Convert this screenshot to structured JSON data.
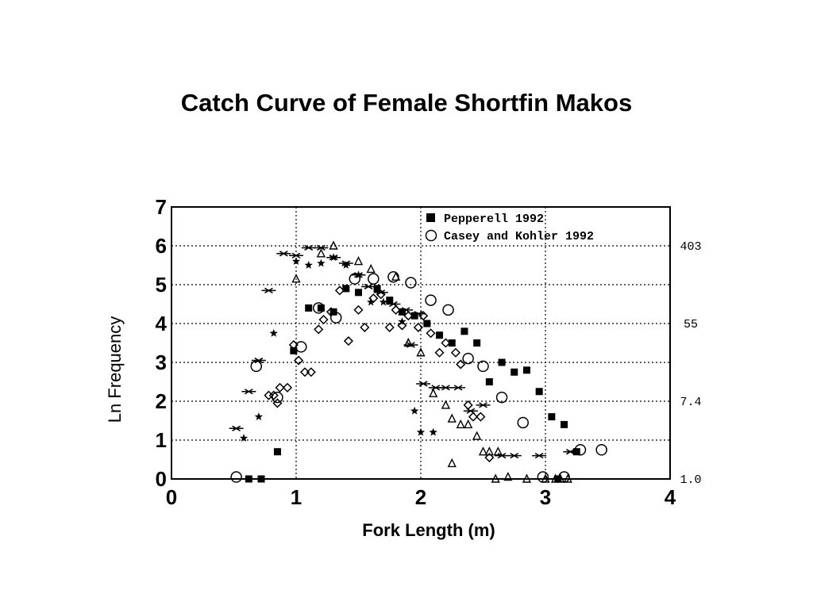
{
  "title": "Catch Curve of Female Shortfin Makos",
  "chart_data": {
    "type": "scatter",
    "xlabel": "Fork Length (m)",
    "ylabel": "Ln Frequency",
    "xlim": [
      0,
      4
    ],
    "ylim": [
      0,
      7
    ],
    "x_ticks": [
      "0",
      "1",
      "2",
      "3",
      "4"
    ],
    "y_ticks": [
      "0",
      "1",
      "2",
      "3",
      "4",
      "5",
      "6",
      "7"
    ],
    "grid": "dotted",
    "right_axis_labels": [
      {
        "y": 6.0,
        "text": "403"
      },
      {
        "y": 4.0,
        "text": "55"
      },
      {
        "y": 2.0,
        "text": "7.4"
      },
      {
        "y": 0.0,
        "text": "1.0"
      }
    ],
    "legend": {
      "placement": "top-right"
    },
    "series": [
      {
        "name": "Pepperell 1992",
        "marker": "filled-square",
        "points": [
          [
            0.62,
            0
          ],
          [
            0.72,
            0
          ],
          [
            0.85,
            0.7
          ],
          [
            0.98,
            3.3
          ],
          [
            1.1,
            4.4
          ],
          [
            1.2,
            4.4
          ],
          [
            1.3,
            4.3
          ],
          [
            1.4,
            4.9
          ],
          [
            1.5,
            4.8
          ],
          [
            1.65,
            4.9
          ],
          [
            1.75,
            4.6
          ],
          [
            1.85,
            4.3
          ],
          [
            1.95,
            4.2
          ],
          [
            2.05,
            4.0
          ],
          [
            2.15,
            3.7
          ],
          [
            2.25,
            3.5
          ],
          [
            2.35,
            3.8
          ],
          [
            2.45,
            3.5
          ],
          [
            2.55,
            2.5
          ],
          [
            2.65,
            3.0
          ],
          [
            2.75,
            2.75
          ],
          [
            2.85,
            2.8
          ],
          [
            2.95,
            2.25
          ],
          [
            3.05,
            1.6
          ],
          [
            3.15,
            1.4
          ],
          [
            3.25,
            0.7
          ],
          [
            3.1,
            0
          ]
        ]
      },
      {
        "name": "Casey and Kohler 1992",
        "marker": "open-circle",
        "points": [
          [
            0.52,
            0.05
          ],
          [
            0.68,
            2.9
          ],
          [
            0.85,
            2.1
          ],
          [
            1.04,
            3.4
          ],
          [
            1.18,
            4.4
          ],
          [
            1.32,
            4.15
          ],
          [
            1.47,
            5.15
          ],
          [
            1.62,
            5.15
          ],
          [
            1.78,
            5.2
          ],
          [
            1.92,
            5.05
          ],
          [
            2.08,
            4.6
          ],
          [
            2.22,
            4.35
          ],
          [
            2.38,
            3.1
          ],
          [
            2.5,
            2.9
          ],
          [
            2.65,
            2.1
          ],
          [
            2.82,
            1.45
          ],
          [
            2.98,
            0.05
          ],
          [
            3.15,
            0.05
          ],
          [
            3.28,
            0.75
          ],
          [
            3.45,
            0.75
          ]
        ]
      },
      {
        "name": "",
        "marker": "open-diamond",
        "points": [
          [
            0.78,
            2.15
          ],
          [
            0.82,
            2.15
          ],
          [
            0.85,
            1.95
          ],
          [
            0.87,
            2.35
          ],
          [
            0.93,
            2.35
          ],
          [
            0.98,
            3.45
          ],
          [
            1.02,
            3.05
          ],
          [
            1.07,
            2.75
          ],
          [
            1.12,
            2.75
          ],
          [
            1.18,
            3.85
          ],
          [
            1.22,
            4.1
          ],
          [
            1.28,
            4.3
          ],
          [
            1.35,
            4.85
          ],
          [
            1.42,
            3.55
          ],
          [
            1.5,
            4.35
          ],
          [
            1.55,
            3.9
          ],
          [
            1.62,
            4.65
          ],
          [
            1.68,
            4.75
          ],
          [
            1.75,
            3.9
          ],
          [
            1.8,
            4.35
          ],
          [
            1.85,
            3.95
          ],
          [
            1.9,
            4.2
          ],
          [
            1.98,
            3.9
          ],
          [
            2.02,
            4.2
          ],
          [
            2.08,
            3.75
          ],
          [
            2.15,
            3.25
          ],
          [
            2.2,
            3.5
          ],
          [
            2.28,
            3.25
          ],
          [
            2.32,
            2.95
          ],
          [
            2.38,
            1.9
          ],
          [
            2.42,
            1.6
          ],
          [
            2.48,
            1.6
          ],
          [
            2.55,
            0.55
          ]
        ]
      },
      {
        "name": "",
        "marker": "open-triangle",
        "points": [
          [
            1.0,
            5.15
          ],
          [
            1.2,
            5.8
          ],
          [
            1.3,
            6.0
          ],
          [
            1.5,
            5.6
          ],
          [
            1.6,
            5.4
          ],
          [
            1.8,
            5.2
          ],
          [
            1.9,
            3.5
          ],
          [
            2.0,
            3.25
          ],
          [
            2.1,
            2.2
          ],
          [
            2.2,
            1.9
          ],
          [
            2.25,
            1.55
          ],
          [
            2.32,
            1.4
          ],
          [
            2.38,
            1.4
          ],
          [
            2.45,
            1.1
          ],
          [
            2.5,
            0.7
          ],
          [
            2.55,
            0.7
          ],
          [
            2.62,
            0.7
          ],
          [
            2.7,
            0.05
          ],
          [
            2.85,
            0
          ],
          [
            3.0,
            0
          ],
          [
            3.08,
            0
          ],
          [
            3.12,
            0
          ],
          [
            3.18,
            0
          ],
          [
            2.25,
            0.4
          ],
          [
            2.6,
            0
          ]
        ]
      },
      {
        "name": "",
        "marker": "star",
        "points": [
          [
            0.58,
            1.05
          ],
          [
            0.7,
            1.6
          ],
          [
            0.82,
            3.75
          ],
          [
            1.0,
            5.6
          ],
          [
            1.1,
            5.5
          ],
          [
            1.2,
            5.55
          ],
          [
            1.3,
            5.7
          ],
          [
            1.4,
            5.5
          ],
          [
            1.5,
            5.25
          ],
          [
            1.6,
            4.55
          ],
          [
            1.7,
            4.55
          ],
          [
            1.85,
            4.05
          ],
          [
            1.95,
            1.75
          ],
          [
            2.0,
            1.2
          ],
          [
            2.1,
            1.2
          ]
        ]
      },
      {
        "name": "",
        "marker": "asterisk",
        "points": [
          [
            0.52,
            1.3
          ],
          [
            0.62,
            2.25
          ],
          [
            0.7,
            3.05
          ],
          [
            0.78,
            4.85
          ],
          [
            0.9,
            5.8
          ],
          [
            1.0,
            5.75
          ],
          [
            1.1,
            5.95
          ],
          [
            1.2,
            5.95
          ],
          [
            1.3,
            5.7
          ],
          [
            1.4,
            5.55
          ],
          [
            1.5,
            5.25
          ],
          [
            1.58,
            4.95
          ],
          [
            1.68,
            4.8
          ],
          [
            1.78,
            4.5
          ],
          [
            1.88,
            4.35
          ],
          [
            1.98,
            4.25
          ],
          [
            1.92,
            3.45
          ],
          [
            2.02,
            2.45
          ],
          [
            2.12,
            2.35
          ],
          [
            2.2,
            2.35
          ],
          [
            2.3,
            2.35
          ],
          [
            2.4,
            1.75
          ],
          [
            2.5,
            1.9
          ],
          [
            2.65,
            0.6
          ],
          [
            2.75,
            0.6
          ],
          [
            2.95,
            0.6
          ],
          [
            3.2,
            0.7
          ]
        ]
      }
    ]
  }
}
